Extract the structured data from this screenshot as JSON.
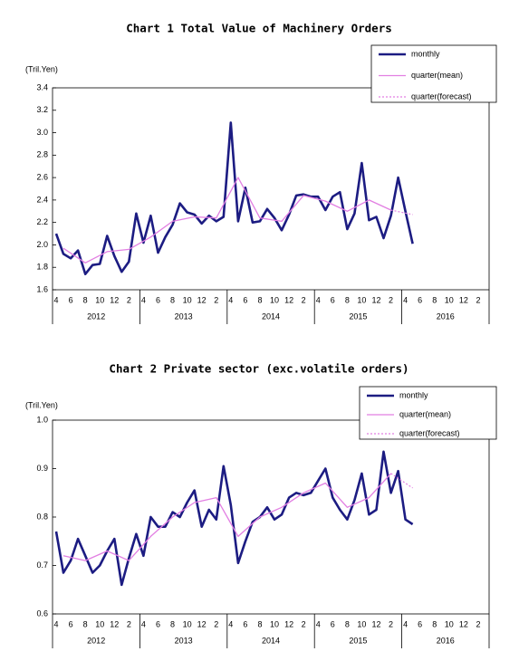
{
  "chart_data": [
    {
      "type": "line",
      "title": "Chart 1 Total Value of Machinery Orders",
      "y_unit": "(Tril.Yen)",
      "categories": [
        "4",
        null,
        "6",
        null,
        "8",
        null,
        "10",
        null,
        "12",
        null,
        "2",
        null,
        "4",
        null,
        "6",
        null,
        "8",
        null,
        "10",
        null,
        "12",
        null,
        "2",
        null,
        "4",
        null,
        "6",
        null,
        "8",
        null,
        "10",
        null,
        "12",
        null,
        "2",
        null,
        "4",
        null,
        "6",
        null,
        "8",
        null,
        "10",
        null,
        "12",
        null,
        "2",
        null,
        "4",
        null,
        "6",
        null,
        "8",
        null,
        "10",
        null,
        "12",
        null,
        "2",
        null
      ],
      "year_groups": [
        "2012",
        "2013",
        "2014",
        "2015",
        "2016"
      ],
      "ylim": [
        1.6,
        3.4
      ],
      "yticks": [
        1.6,
        1.8,
        {
          "value": 2,
          "label": "2.0"
        },
        2.2,
        2.4,
        2.6,
        2.8,
        {
          "value": 3,
          "label": "3.0"
        },
        3.2,
        3.4
      ],
      "connect_gaps": true,
      "legend": "top-right",
      "series": [
        {
          "name": "monthly",
          "color": "#1c1c82",
          "style": "solid",
          "values": [
            2.1,
            1.92,
            1.88,
            1.95,
            1.74,
            1.82,
            1.83,
            2.08,
            1.9,
            1.76,
            1.85,
            2.28,
            2.02,
            2.26,
            1.93,
            2.07,
            2.18,
            2.37,
            2.29,
            2.27,
            2.19,
            2.26,
            2.21,
            2.25,
            3.09,
            2.21,
            2.51,
            2.2,
            2.21,
            2.32,
            2.24,
            2.13,
            2.27,
            2.44,
            2.45,
            2.43,
            2.43,
            2.31,
            2.43,
            2.47,
            2.14,
            2.28,
            2.73,
            2.22,
            2.25,
            2.06,
            2.26,
            2.6,
            2.3,
            2.01,
            null,
            null,
            null,
            null,
            null,
            null,
            null,
            null,
            null,
            null
          ]
        },
        {
          "name": "quarter(mean)",
          "color": "#e27fe2",
          "style": "solid",
          "values": [
            null,
            1.97,
            null,
            null,
            1.84,
            null,
            null,
            1.94,
            null,
            null,
            1.96,
            null,
            null,
            2.07,
            null,
            null,
            2.21,
            null,
            null,
            2.25,
            null,
            null,
            2.24,
            null,
            null,
            2.6,
            null,
            null,
            2.24,
            null,
            null,
            2.21,
            null,
            null,
            2.44,
            null,
            null,
            2.39,
            null,
            null,
            2.3,
            null,
            null,
            2.4,
            null,
            null,
            2.31,
            null,
            null,
            null,
            null,
            null,
            null,
            null,
            null,
            null,
            null,
            null,
            null,
            null
          ]
        },
        {
          "name": "quarter(forecast)",
          "color": "#e27fe2",
          "style": "dotted",
          "values": [
            null,
            null,
            null,
            null,
            null,
            null,
            null,
            null,
            null,
            null,
            null,
            null,
            null,
            null,
            null,
            null,
            null,
            null,
            null,
            null,
            null,
            null,
            null,
            null,
            null,
            null,
            null,
            null,
            null,
            null,
            null,
            null,
            null,
            null,
            null,
            null,
            null,
            null,
            null,
            null,
            null,
            null,
            null,
            null,
            null,
            null,
            2.31,
            null,
            null,
            2.27,
            null,
            null,
            null,
            null,
            null,
            null,
            null,
            null,
            null,
            null
          ]
        }
      ]
    },
    {
      "type": "line",
      "title": "Chart 2 Private sector (exc.volatile orders)",
      "y_unit": "(Tril.Yen)",
      "categories": [
        "4",
        null,
        "6",
        null,
        "8",
        null,
        "10",
        null,
        "12",
        null,
        "2",
        null,
        "4",
        null,
        "6",
        null,
        "8",
        null,
        "10",
        null,
        "12",
        null,
        "2",
        null,
        "4",
        null,
        "6",
        null,
        "8",
        null,
        "10",
        null,
        "12",
        null,
        "2",
        null,
        "4",
        null,
        "6",
        null,
        "8",
        null,
        "10",
        null,
        "12",
        null,
        "2",
        null,
        "4",
        null,
        "6",
        null,
        "8",
        null,
        "10",
        null,
        "12",
        null,
        "2",
        null
      ],
      "year_groups": [
        "2012",
        "2013",
        "2014",
        "2015",
        "2016"
      ],
      "ylim": [
        0.6,
        1.0
      ],
      "yticks": [
        0.6,
        0.7,
        0.8,
        0.9,
        {
          "value": 1,
          "label": "1.0"
        }
      ],
      "connect_gaps": true,
      "legend": "top-right",
      "series": [
        {
          "name": "monthly",
          "color": "#1c1c82",
          "style": "solid",
          "values": [
            0.77,
            0.685,
            0.71,
            0.755,
            0.72,
            0.685,
            0.7,
            0.73,
            0.755,
            0.66,
            0.715,
            0.765,
            0.72,
            0.8,
            0.78,
            0.78,
            0.81,
            0.8,
            0.83,
            0.855,
            0.78,
            0.815,
            0.795,
            0.905,
            0.825,
            0.705,
            0.75,
            0.79,
            0.8,
            0.82,
            0.795,
            0.805,
            0.84,
            0.85,
            0.845,
            0.85,
            0.875,
            0.9,
            0.84,
            0.815,
            0.795,
            0.835,
            0.89,
            0.805,
            0.815,
            0.935,
            0.85,
            0.895,
            0.795,
            0.785,
            null,
            null,
            null,
            null,
            null,
            null,
            null,
            null,
            null,
            null
          ]
        },
        {
          "name": "quarter(mean)",
          "color": "#e27fe2",
          "style": "solid",
          "values": [
            null,
            0.72,
            null,
            null,
            0.71,
            null,
            null,
            0.73,
            null,
            null,
            0.71,
            null,
            null,
            0.76,
            null,
            null,
            0.8,
            null,
            null,
            0.83,
            null,
            null,
            0.84,
            null,
            null,
            0.76,
            null,
            null,
            0.8,
            null,
            null,
            0.82,
            null,
            null,
            0.85,
            null,
            null,
            0.87,
            null,
            null,
            0.82,
            null,
            null,
            0.84,
            null,
            null,
            0.89,
            null,
            null,
            null,
            null,
            null,
            null,
            null,
            null,
            null,
            null,
            null,
            null,
            null
          ]
        },
        {
          "name": "quarter(forecast)",
          "color": "#e27fe2",
          "style": "dotted",
          "values": [
            null,
            null,
            null,
            null,
            null,
            null,
            null,
            null,
            null,
            null,
            null,
            null,
            null,
            null,
            null,
            null,
            null,
            null,
            null,
            null,
            null,
            null,
            null,
            null,
            null,
            null,
            null,
            null,
            null,
            null,
            null,
            null,
            null,
            null,
            null,
            null,
            null,
            null,
            null,
            null,
            null,
            null,
            null,
            null,
            null,
            null,
            0.89,
            null,
            null,
            0.86,
            null,
            null,
            null,
            null,
            null,
            null,
            null,
            null,
            null,
            null
          ]
        }
      ]
    }
  ]
}
